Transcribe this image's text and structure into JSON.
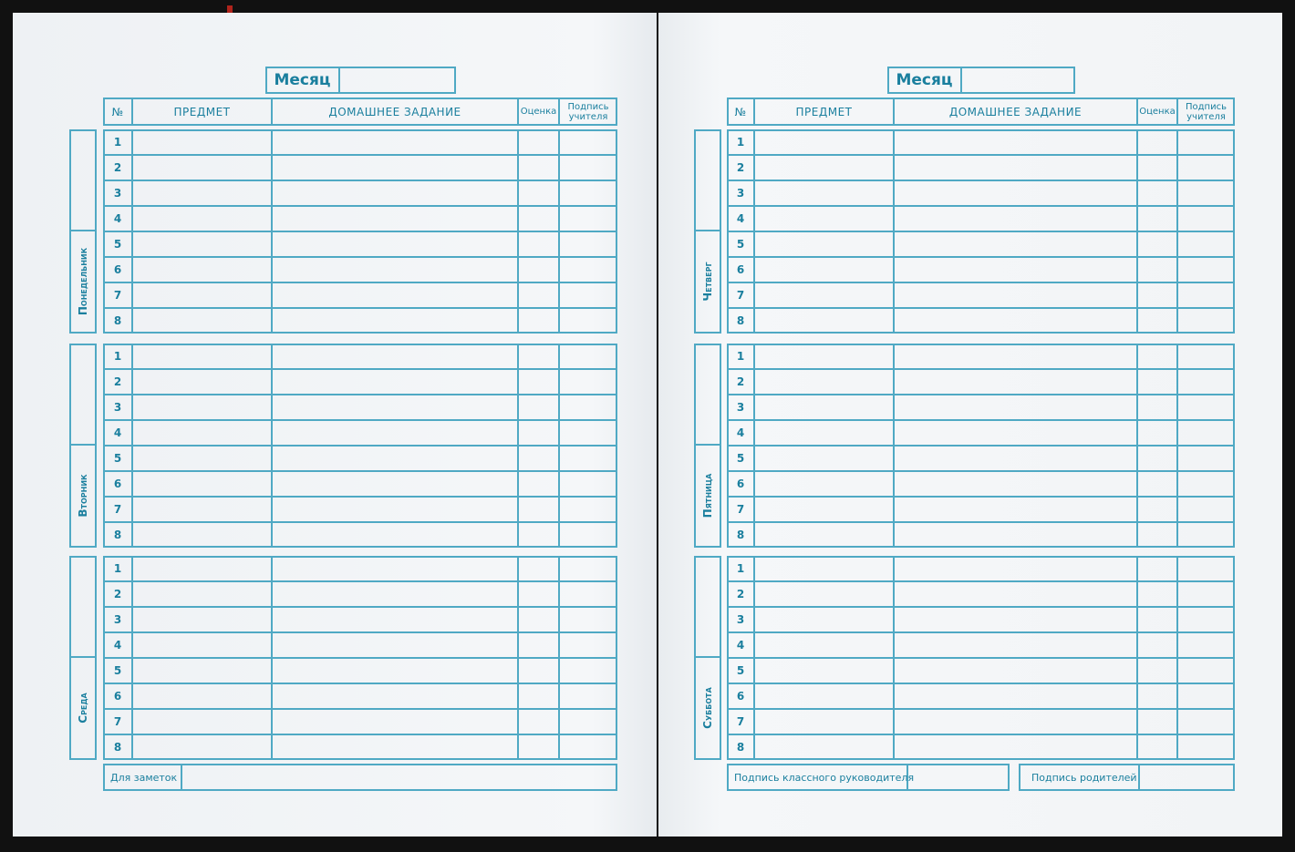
{
  "colors": {
    "line": "#4fa9c4",
    "text": "#1a7f9e",
    "paper": "#f4f6f8",
    "cover": "#111111"
  },
  "month_label": "Месяц",
  "headers": {
    "num": "№",
    "subject": "ПРЕДМЕТ",
    "homework": "ДОМАШНЕЕ ЗАДАНИЕ",
    "grade": "Оценка",
    "teacher_sign": "Подпись учителя"
  },
  "row_numbers": [
    "1",
    "2",
    "3",
    "4",
    "5",
    "6",
    "7",
    "8"
  ],
  "left_page": {
    "days": [
      "Понедельник",
      "Вторник",
      "Среда"
    ],
    "notes_label": "Для заметок"
  },
  "right_page": {
    "days": [
      "Четверг",
      "Пятница",
      "Суббота"
    ],
    "class_teacher_sign_label": "Подпись классного руководителя",
    "parents_sign_label": "Подпись родителей"
  }
}
